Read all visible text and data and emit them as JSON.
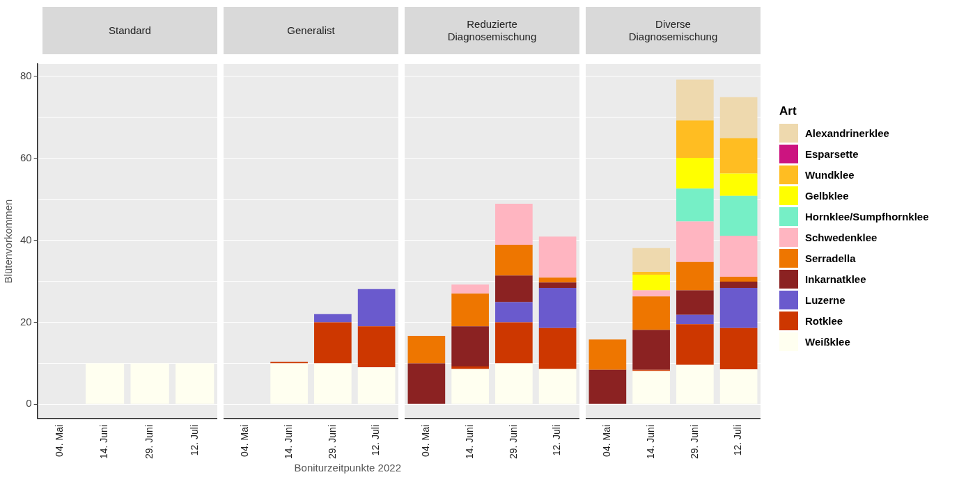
{
  "chart_data": [
    {
      "type": "bar",
      "title": "Standard",
      "ylabel": "Blütenvorkommen",
      "categories": [
        "04. Mai",
        "14. Juni",
        "29. Juni",
        "12. Juli"
      ],
      "stacked": true,
      "ylim": [
        -3.5,
        83
      ],
      "yticks": [
        0,
        {
          "value": 10,
          "label": null
        },
        20,
        {
          "value": 30,
          "label": null
        },
        40,
        {
          "value": 50,
          "label": null
        },
        60,
        {
          "value": 70,
          "label": null
        },
        80
      ],
      "grid": "y",
      "series": [
        {
          "color": "#fffff0",
          "values": [
            null,
            10,
            10,
            10
          ]
        }
      ]
    },
    {
      "type": "bar",
      "title": "Generalist",
      "xlabel": "Boniturzeitpunkte 2022",
      "categories": [
        "04. Mai",
        "14. Juni",
        "29. Juni",
        "12. Juli"
      ],
      "stacked": true,
      "ylim": [
        -3.5,
        83
      ],
      "yticks": [
        0,
        {
          "value": 10,
          "label": null
        },
        20,
        {
          "value": 30,
          "label": null
        },
        40,
        {
          "value": 50,
          "label": null
        },
        60,
        {
          "value": 70,
          "label": null
        },
        80
      ],
      "grid": "y",
      "tick_labels": "x",
      "series": [
        {
          "color": "#fffff0",
          "values": [
            null,
            10,
            10,
            9
          ]
        },
        {
          "color": "#cd3700",
          "values": [
            null,
            0.3,
            10,
            10
          ]
        },
        {
          "color": "#6a5acd",
          "values": [
            null,
            null,
            2,
            9.1
          ]
        }
      ]
    },
    {
      "type": "bar",
      "title": "Reduzierte Diagnosemischung",
      "categories": [
        "04. Mai",
        "14. Juni",
        "29. Juni",
        "12. Juli"
      ],
      "stacked": true,
      "ylim": [
        -3.5,
        83
      ],
      "yticks": [
        0,
        {
          "value": 10,
          "label": null
        },
        20,
        {
          "value": 30,
          "label": null
        },
        40,
        {
          "value": 50,
          "label": null
        },
        60,
        {
          "value": 70,
          "label": null
        },
        80
      ],
      "grid": "y",
      "tick_labels": "x",
      "series": [
        {
          "color": "#fffff0",
          "values": [
            null,
            8.6,
            10,
            8.6
          ]
        },
        {
          "color": "#cd3700",
          "values": [
            null,
            0.6,
            10,
            10
          ]
        },
        {
          "color": "#6a5acd",
          "values": [
            null,
            null,
            4.9,
            9.8
          ]
        },
        {
          "color": "#8b2222",
          "values": [
            10,
            9.8,
            6.5,
            1.3
          ]
        },
        {
          "color": "#ee7600",
          "values": [
            6.7,
            8,
            7.5,
            1.2
          ]
        },
        {
          "color": "#ffb5c1",
          "values": [
            null,
            2.2,
            10,
            10
          ]
        }
      ]
    },
    {
      "type": "bar",
      "title": "Diverse Diagnosemischung",
      "categories": [
        "04. Mai",
        "14. Juni",
        "29. Juni",
        "12. Juli"
      ],
      "stacked": true,
      "ylim": [
        -3.5,
        83
      ],
      "yticks": [
        0,
        {
          "value": 10,
          "label": null
        },
        20,
        {
          "value": 30,
          "label": null
        },
        40,
        {
          "value": 50,
          "label": null
        },
        60,
        {
          "value": 70,
          "label": null
        },
        80
      ],
      "grid": "y",
      "tick_labels": "x",
      "legend": "right",
      "legend_title": "Art",
      "series": [
        {
          "name": "Weißklee",
          "color": "#fffff0",
          "values": [
            null,
            8.1,
            9.6,
            8.5
          ]
        },
        {
          "name": "Rotklee",
          "color": "#cd3700",
          "values": [
            null,
            0.3,
            9.9,
            10.1
          ]
        },
        {
          "name": "Luzerne",
          "color": "#6a5acd",
          "values": [
            null,
            null,
            2.3,
            9.8
          ]
        },
        {
          "name": "Inkarnatklee",
          "color": "#8b2222",
          "values": [
            8.4,
            9.7,
            6,
            1.5
          ]
        },
        {
          "name": "Serradella",
          "color": "#ee7600",
          "values": [
            7.4,
            8.2,
            6.9,
            1.2
          ]
        },
        {
          "name": "Schwedenklee",
          "color": "#ffb5c1",
          "values": [
            null,
            1.5,
            9.9,
            10
          ]
        },
        {
          "name": "Hornklee/Sumpfhornklee",
          "color": "#76efc6",
          "values": [
            null,
            null,
            8,
            9.7
          ]
        },
        {
          "name": "Gelbklee",
          "color": "#ffff00",
          "values": [
            null,
            3.8,
            7.5,
            5.5
          ]
        },
        {
          "name": "Wundklee",
          "color": "#ffbd22",
          "values": [
            null,
            0.7,
            9.1,
            8.6
          ]
        },
        {
          "name": "Esparsette",
          "color": "#cc1480",
          "values": [
            null,
            null,
            null,
            null
          ]
        },
        {
          "name": "Alexandrinerklee",
          "color": "#eed9ae",
          "values": [
            null,
            5.8,
            10,
            10
          ]
        }
      ]
    }
  ]
}
